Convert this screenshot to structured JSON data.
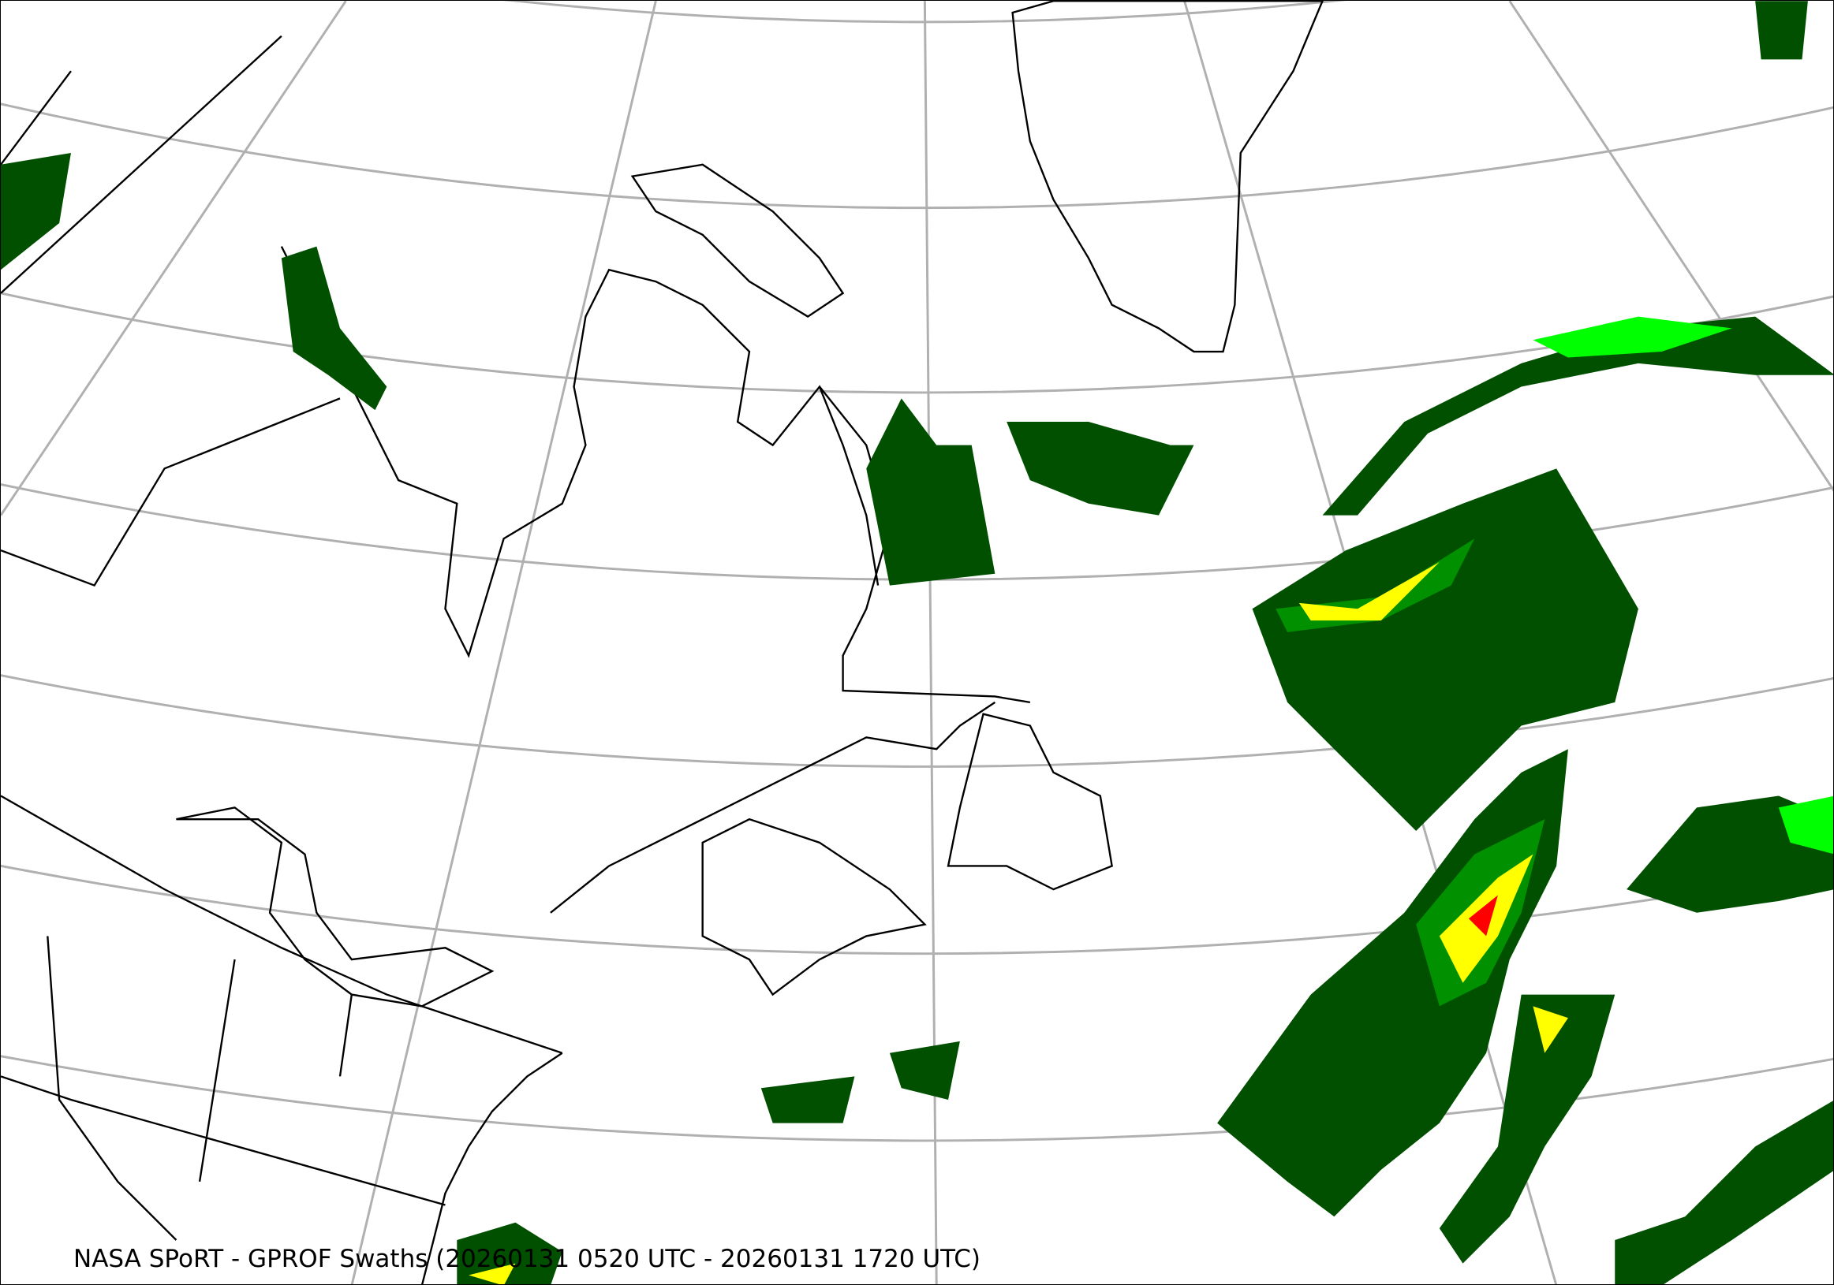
{
  "caption": "NASA SPoRT - GPROF Swaths (20260131 0520 UTC - 20260131 1720 UTC)",
  "colors": {
    "precip_light": "#005000",
    "precip_low": "#009000",
    "precip_mid": "#00ff00",
    "precip_high": "#ffff00",
    "precip_heavy": "#ff0000",
    "graticule": "#b0b0b0",
    "coastline": "#000000"
  }
}
